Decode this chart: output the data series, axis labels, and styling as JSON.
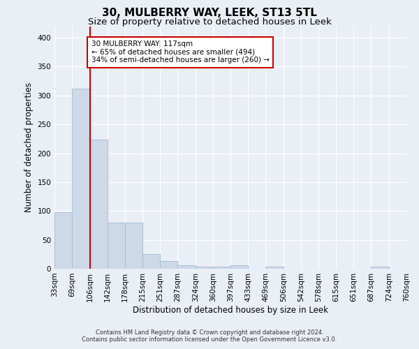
{
  "title": "30, MULBERRY WAY, LEEK, ST13 5TL",
  "subtitle": "Size of property relative to detached houses in Leek",
  "xlabel": "Distribution of detached houses by size in Leek",
  "ylabel": "Number of detached properties",
  "categories": [
    "33sqm",
    "69sqm",
    "106sqm",
    "142sqm",
    "178sqm",
    "215sqm",
    "251sqm",
    "287sqm",
    "324sqm",
    "360sqm",
    "397sqm",
    "433sqm",
    "469sqm",
    "506sqm",
    "542sqm",
    "578sqm",
    "615sqm",
    "651sqm",
    "687sqm",
    "724sqm",
    "760sqm"
  ],
  "bar_heights": [
    98,
    312,
    224,
    80,
    80,
    25,
    13,
    6,
    4,
    4,
    6,
    0,
    4,
    0,
    0,
    0,
    0,
    0,
    4,
    0,
    0
  ],
  "bar_color": "#ccd9e8",
  "bar_edge_color": "#a8c0d6",
  "vline_color": "#cc0000",
  "annotation_text": "30 MULBERRY WAY: 117sqm\n← 65% of detached houses are smaller (494)\n34% of semi-detached houses are larger (260) →",
  "annotation_box_color": "#ffffff",
  "annotation_box_edge_color": "#cc0000",
  "ylim": [
    0,
    420
  ],
  "yticks": [
    0,
    50,
    100,
    150,
    200,
    250,
    300,
    350,
    400
  ],
  "title_fontsize": 11,
  "subtitle_fontsize": 9.5,
  "xlabel_fontsize": 8.5,
  "ylabel_fontsize": 8.5,
  "tick_fontsize": 7.5,
  "annotation_fontsize": 7.5,
  "footer_line1": "Contains HM Land Registry data © Crown copyright and database right 2024.",
  "footer_line2": "Contains public sector information licensed under the Open Government Licence v3.0.",
  "background_color": "#eaeff6",
  "plot_bg_color": "#eaeff6",
  "grid_color": "#ffffff"
}
